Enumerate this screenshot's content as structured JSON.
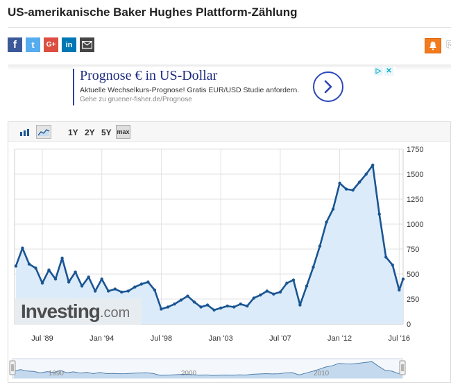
{
  "page": {
    "title": "US-amerikanische Baker Hughes Plattform-Zählung"
  },
  "share": {
    "facebook_label": "f",
    "twitter_label": "t",
    "googleplus_label": "G+",
    "linkedin_label": "in"
  },
  "ad": {
    "title": "Prognose € in US-Dollar",
    "description": "Aktuelle Wechselkurs-Prognose! Gratis EUR/USD Studie anfordern.",
    "url": "Gehe zu gruener-fisher.de/Prognose"
  },
  "chart": {
    "toolbar": {
      "ranges": [
        "1Y",
        "2Y",
        "5Y"
      ],
      "active_range": "max"
    },
    "watermark": {
      "main": "Investing",
      "suffix": ".com"
    },
    "navigator_labels": [
      "1990",
      "2000",
      "2010"
    ],
    "colors": {
      "line": "#1a5592",
      "fill": "#dcebf9",
      "grid": "#e2e2e2"
    }
  },
  "chart_data": {
    "type": "area",
    "x_tick_labels": [
      "Jul '89",
      "Jan '94",
      "Jul '98",
      "Jan '03",
      "Jul '07",
      "Jan '12",
      "Jul '16"
    ],
    "y_tick_labels": [
      "0",
      "250",
      "500",
      "750",
      "1000",
      "1250",
      "1500",
      "1750"
    ],
    "ylim": [
      0,
      1750
    ],
    "grid": true,
    "x": [
      1987.5,
      1988.0,
      1988.5,
      1989.0,
      1989.5,
      1990.0,
      1990.5,
      1991.0,
      1991.5,
      1992.0,
      1992.5,
      1993.0,
      1993.5,
      1994.0,
      1994.5,
      1995.0,
      1995.5,
      1996.0,
      1996.5,
      1997.0,
      1997.5,
      1998.0,
      1998.5,
      1999.0,
      1999.5,
      2000.0,
      2000.5,
      2001.0,
      2001.5,
      2002.0,
      2002.5,
      2003.0,
      2003.5,
      2004.0,
      2004.5,
      2005.0,
      2005.5,
      2006.0,
      2006.5,
      2007.0,
      2007.5,
      2008.0,
      2008.5,
      2009.0,
      2009.5,
      2010.0,
      2010.5,
      2011.0,
      2011.5,
      2012.0,
      2012.5,
      2013.0,
      2013.5,
      2014.0,
      2014.5,
      2015.0,
      2015.5,
      2016.0,
      2016.5,
      2016.8
    ],
    "y": [
      580,
      760,
      600,
      560,
      410,
      540,
      450,
      660,
      420,
      520,
      380,
      470,
      330,
      450,
      330,
      350,
      320,
      330,
      370,
      400,
      420,
      340,
      150,
      170,
      200,
      240,
      280,
      220,
      170,
      190,
      140,
      160,
      180,
      170,
      200,
      180,
      260,
      290,
      330,
      300,
      320,
      410,
      440,
      190,
      380,
      570,
      780,
      1020,
      1150,
      1410,
      1350,
      1340,
      1420,
      1500,
      1590,
      1100,
      670,
      590,
      340,
      450
    ]
  }
}
